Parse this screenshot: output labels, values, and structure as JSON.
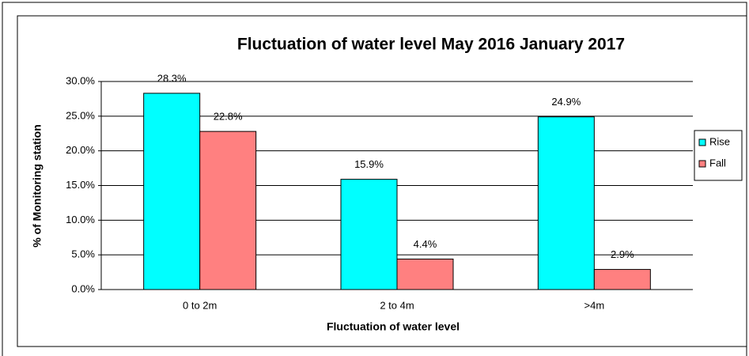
{
  "chart_data": {
    "type": "bar",
    "title": "Fluctuation of water level May 2016 January 2017",
    "x_label": "Fluctuation of water level",
    "y_label": "% of Monitoring station",
    "categories": [
      "0 to 2m",
      "2 to 4m",
      ">4m"
    ],
    "series": [
      {
        "name": "Rise",
        "color": "#00ffff",
        "values": [
          28.3,
          15.9,
          24.9
        ],
        "value_labels": [
          "28.3%",
          "15.9%",
          "24.9%"
        ]
      },
      {
        "name": "Fall",
        "color": "#ff8080",
        "values": [
          22.8,
          4.4,
          2.9
        ],
        "value_labels": [
          "22.8%",
          "4.4%",
          "2.9%"
        ]
      }
    ],
    "ylim": [
      0,
      30
    ],
    "yticks": [
      {
        "value": 0,
        "label": "0.0%"
      },
      {
        "value": 5,
        "label": "5.0%"
      },
      {
        "value": 10,
        "label": "10.0%"
      },
      {
        "value": 15,
        "label": "15.0%"
      },
      {
        "value": 20,
        "label": "20.0%"
      },
      {
        "value": 25,
        "label": "25.0%"
      },
      {
        "value": 30,
        "label": "30.0%"
      }
    ],
    "grid": true,
    "legend": "right"
  }
}
